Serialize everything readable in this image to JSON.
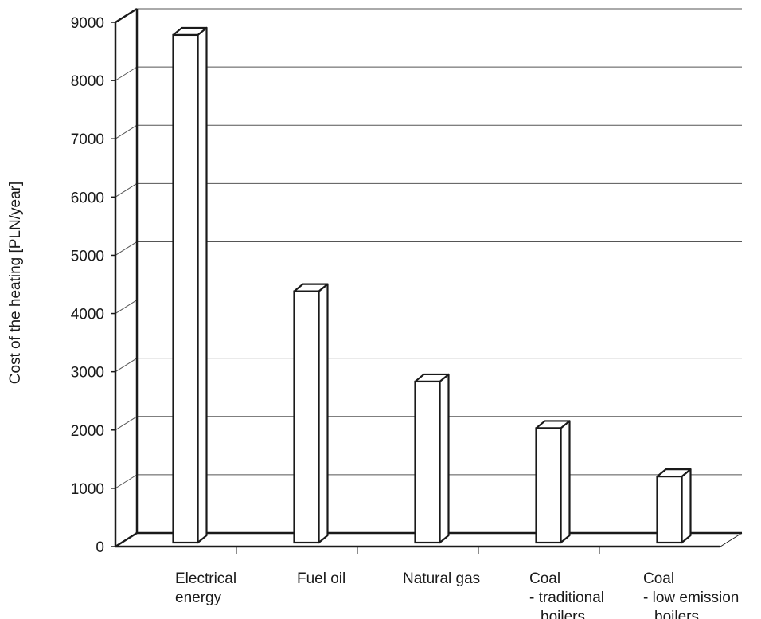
{
  "chart_data": {
    "type": "bar",
    "ylabel": "Cost of the heating [PLN/year]",
    "xlabel": "",
    "title": "",
    "ylim": [
      0,
      9000
    ],
    "y_ticks": [
      "0",
      "1000",
      "2000",
      "3000",
      "4000",
      "5000",
      "6000",
      "7000",
      "8000",
      "9000"
    ],
    "grid": true,
    "style": "3d-bars",
    "categories": [
      [
        "Electrical",
        "energy"
      ],
      [
        "Fuel oil"
      ],
      [
        "Natural gas"
      ],
      [
        "Coal",
        "- traditional",
        "boilers"
      ],
      [
        "Coal",
        "- low emission",
        "boilers"
      ]
    ],
    "values": [
      8700,
      4300,
      2750,
      1950,
      1120
    ],
    "colors": {
      "bar_face": "#ffffff",
      "stroke": "#1a1a1a",
      "grid": "#555555"
    }
  }
}
